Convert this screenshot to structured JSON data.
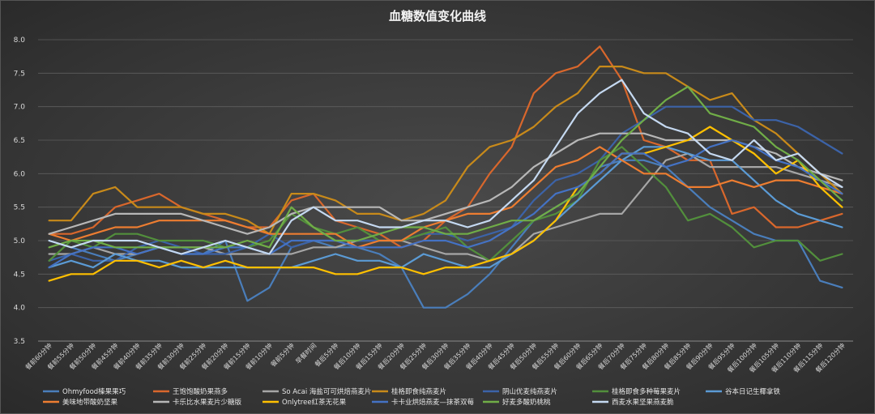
{
  "chart_data": {
    "type": "line",
    "title": "血糖数值变化曲线",
    "ylim": [
      3.5,
      8.0
    ],
    "yticks": [
      "3.5",
      "4.0",
      "4.5",
      "5.0",
      "5.5",
      "6.0",
      "6.5",
      "7.0",
      "7.5",
      "8.0"
    ],
    "grid": true,
    "legend_position": "bottom",
    "categories": [
      "餐前60分钟",
      "餐前55分钟",
      "餐前50分钟",
      "餐前45分钟",
      "餐前40分钟",
      "餐前35分钟",
      "餐前30分钟",
      "餐前25分钟",
      "餐前20分钟",
      "餐前15分钟",
      "餐前10分钟",
      "餐前5分钟",
      "早餐时间",
      "餐后5分钟",
      "餐后10分钟",
      "餐后15分钟",
      "餐后20分钟",
      "餐后25分钟",
      "餐后30分钟",
      "餐后35分钟",
      "餐后40分钟",
      "餐后45分钟",
      "餐后50分钟",
      "餐后55分钟",
      "餐后60分钟",
      "餐后65分钟",
      "餐后70分钟",
      "餐后75分钟",
      "餐后80分钟",
      "餐后85分钟",
      "餐后90分钟",
      "餐后95分钟",
      "餐后100分钟",
      "餐后105分钟",
      "餐后110分钟",
      "餐后115分钟",
      "餐后120分钟"
    ],
    "series": [
      {
        "name": "Ohmyfood榛果果巧",
        "color": "#4a7ebb",
        "values": [
          5.0,
          4.9,
          4.8,
          4.7,
          4.8,
          4.9,
          4.8,
          4.8,
          5.0,
          4.1,
          4.3,
          4.9,
          5.0,
          4.9,
          4.9,
          4.8,
          4.6,
          4.0,
          4.0,
          4.2,
          4.5,
          4.9,
          5.3,
          5.5,
          5.7,
          6.1,
          6.2,
          6.2,
          6.1,
          5.8,
          5.5,
          5.3,
          5.1,
          5.0,
          5.0,
          4.4,
          4.3
        ]
      },
      {
        "name": "王饱饱酸奶果燕多",
        "color": "#d9672c",
        "values": [
          5.1,
          5.1,
          5.2,
          5.5,
          5.6,
          5.7,
          5.5,
          5.4,
          5.3,
          5.2,
          5.2,
          5.6,
          5.7,
          5.3,
          5.2,
          5.1,
          4.9,
          5.0,
          5.3,
          5.5,
          6.0,
          6.4,
          7.2,
          7.5,
          7.6,
          7.9,
          7.4,
          6.5,
          6.4,
          6.2,
          6.2,
          5.4,
          5.5,
          5.2,
          5.2,
          5.3,
          5.4
        ]
      },
      {
        "name": "So Acai 海盐可可烘焙燕麦片",
        "color": "#a6a6a6",
        "values": [
          4.8,
          4.8,
          4.9,
          4.8,
          4.8,
          4.9,
          4.9,
          4.9,
          4.8,
          4.8,
          4.8,
          4.8,
          4.9,
          4.9,
          5.0,
          5.0,
          5.0,
          4.9,
          4.8,
          4.8,
          4.7,
          4.8,
          5.1,
          5.2,
          5.3,
          5.4,
          5.4,
          5.8,
          6.2,
          6.3,
          6.1,
          6.1,
          6.1,
          6.1,
          6.0,
          5.9,
          5.8
        ]
      },
      {
        "name": "桂格即食纯燕麦片",
        "color": "#c88a1a",
        "values": [
          5.3,
          5.3,
          5.7,
          5.8,
          5.5,
          5.5,
          5.5,
          5.4,
          5.4,
          5.3,
          5.1,
          5.7,
          5.7,
          5.6,
          5.4,
          5.4,
          5.3,
          5.4,
          5.6,
          6.1,
          6.4,
          6.5,
          6.7,
          7.0,
          7.2,
          7.6,
          7.6,
          7.5,
          7.5,
          7.3,
          7.1,
          7.2,
          6.8,
          6.6,
          6.3,
          6.0,
          5.7
        ]
      },
      {
        "name": "阴山优麦纯燕麦片",
        "color": "#3c63a8",
        "values": [
          4.7,
          4.8,
          4.7,
          4.7,
          4.9,
          5.0,
          4.9,
          4.8,
          4.8,
          4.9,
          5.1,
          4.9,
          5.0,
          5.0,
          5.0,
          5.0,
          5.0,
          5.1,
          5.1,
          5.0,
          5.1,
          5.2,
          5.6,
          5.9,
          6.0,
          6.2,
          6.6,
          6.8,
          7.0,
          7.0,
          7.0,
          7.0,
          6.8,
          6.8,
          6.7,
          6.5,
          6.3
        ]
      },
      {
        "name": "桂格即食多种莓果麦片",
        "color": "#528f3c",
        "values": [
          4.7,
          5.0,
          4.9,
          5.1,
          5.1,
          5.0,
          5.0,
          5.0,
          4.9,
          4.9,
          5.0,
          5.4,
          5.2,
          5.1,
          5.2,
          5.0,
          5.0,
          5.1,
          5.2,
          4.9,
          4.7,
          5.0,
          5.3,
          5.4,
          5.6,
          6.2,
          6.4,
          6.1,
          5.8,
          5.3,
          5.4,
          5.2,
          4.9,
          5.0,
          5.0,
          4.7,
          4.8
        ]
      },
      {
        "name": "谷本日记生椰拿铁",
        "color": "#5b9bd5",
        "values": [
          4.6,
          4.7,
          4.6,
          4.8,
          4.7,
          4.7,
          4.6,
          4.6,
          4.6,
          4.6,
          4.6,
          4.6,
          4.7,
          4.8,
          4.7,
          4.7,
          4.6,
          4.8,
          4.7,
          4.6,
          4.6,
          4.8,
          5.0,
          5.3,
          5.6,
          5.9,
          6.2,
          6.4,
          6.4,
          6.3,
          6.2,
          6.2,
          5.9,
          5.6,
          5.4,
          5.3,
          5.2
        ]
      },
      {
        "name": "美味地带酸奶坚果",
        "color": "#ed7d31",
        "values": [
          5.1,
          5.0,
          5.1,
          5.2,
          5.2,
          5.3,
          5.3,
          5.3,
          5.3,
          5.2,
          5.1,
          5.1,
          5.1,
          5.1,
          4.9,
          5.0,
          5.0,
          5.2,
          5.3,
          5.4,
          5.4,
          5.5,
          5.8,
          6.1,
          6.2,
          6.4,
          6.2,
          6.0,
          6.0,
          5.8,
          5.8,
          5.9,
          5.8,
          5.9,
          5.9,
          5.8,
          5.7
        ]
      },
      {
        "name": "卡乐比水果麦片少糖版",
        "color": "#b7b7b7",
        "values": [
          5.1,
          5.2,
          5.3,
          5.4,
          5.4,
          5.4,
          5.4,
          5.3,
          5.2,
          5.1,
          5.2,
          5.4,
          5.5,
          5.5,
          5.5,
          5.5,
          5.3,
          5.3,
          5.4,
          5.5,
          5.6,
          5.8,
          6.1,
          6.3,
          6.5,
          6.6,
          6.6,
          6.6,
          6.5,
          6.5,
          6.5,
          6.5,
          6.4,
          6.3,
          6.1,
          6.0,
          5.9
        ]
      },
      {
        "name": "Onlytree红茶无花果",
        "color": "#ffc000",
        "values": [
          4.4,
          4.5,
          4.5,
          4.7,
          4.7,
          4.6,
          4.7,
          4.6,
          4.7,
          4.6,
          4.6,
          4.6,
          4.6,
          4.5,
          4.5,
          4.6,
          4.6,
          4.5,
          4.6,
          4.6,
          4.7,
          4.8,
          5.0,
          5.3,
          5.8,
          6.0,
          6.3,
          6.3,
          6.4,
          6.5,
          6.7,
          6.5,
          6.3,
          6.0,
          6.2,
          5.8,
          5.5
        ]
      },
      {
        "name": "卡卡业烘焙燕麦—抹茶双莓",
        "color": "#4472c4",
        "values": [
          4.6,
          4.8,
          4.9,
          4.9,
          4.8,
          4.9,
          4.8,
          4.8,
          4.9,
          4.9,
          4.8,
          5.0,
          5.0,
          5.0,
          4.9,
          4.9,
          4.9,
          5.0,
          5.0,
          4.9,
          5.0,
          5.2,
          5.4,
          5.7,
          5.8,
          6.0,
          6.3,
          6.3,
          6.1,
          6.2,
          6.4,
          6.5,
          6.4,
          6.2,
          6.1,
          5.9,
          5.7
        ]
      },
      {
        "name": "好麦多酸奶桃桃",
        "color": "#70ad47",
        "values": [
          4.9,
          5.0,
          5.0,
          4.9,
          4.9,
          4.9,
          4.9,
          4.9,
          4.9,
          5.0,
          4.9,
          5.5,
          5.2,
          5.0,
          5.0,
          5.1,
          5.2,
          5.2,
          5.1,
          5.1,
          5.2,
          5.3,
          5.3,
          5.5,
          5.7,
          6.1,
          6.5,
          6.8,
          7.1,
          7.3,
          6.9,
          6.8,
          6.7,
          6.4,
          6.2,
          5.9,
          5.6
        ]
      },
      {
        "name": "西麦水果坚果燕麦脆",
        "color": "#c5d9f1",
        "values": [
          5.0,
          4.9,
          5.0,
          5.0,
          5.0,
          4.9,
          4.8,
          4.9,
          5.0,
          4.9,
          4.8,
          5.3,
          5.5,
          5.3,
          5.3,
          5.2,
          5.2,
          5.3,
          5.3,
          5.2,
          5.3,
          5.6,
          5.9,
          6.4,
          6.9,
          7.2,
          7.4,
          6.9,
          6.7,
          6.6,
          6.3,
          6.2,
          6.5,
          6.2,
          6.3,
          6.0,
          5.8
        ]
      }
    ]
  }
}
